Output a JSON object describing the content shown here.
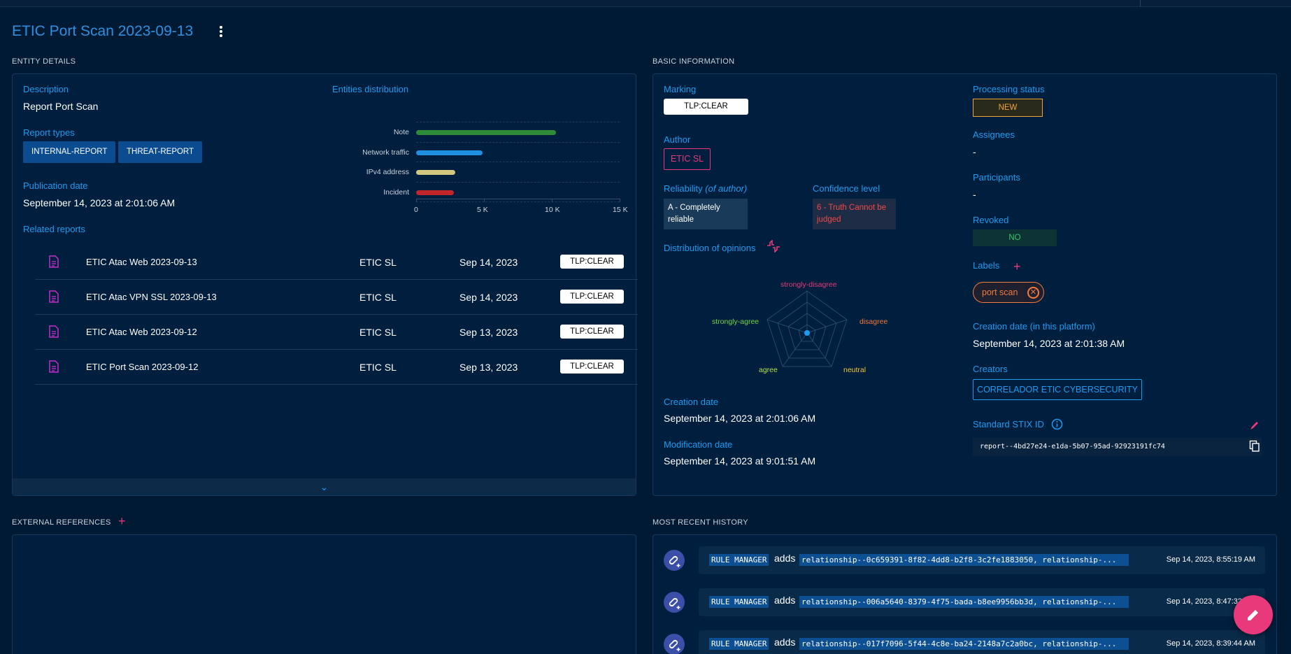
{
  "page": {
    "title": "ETIC Port Scan 2023-09-13"
  },
  "entity_details": {
    "section_title": "ENTITY DETAILS",
    "description_label": "Description",
    "description_value": "Report Port Scan",
    "report_types_label": "Report types",
    "report_types": [
      "INTERNAL-REPORT",
      "THREAT-REPORT"
    ],
    "publication_date_label": "Publication date",
    "publication_date_value": "September 14, 2023 at 2:01:06 AM",
    "related_reports_label": "Related reports",
    "related_reports": [
      {
        "name": "ETIC Atac Web 2023-09-13",
        "author": "ETIC SL",
        "date": "Sep 14, 2023",
        "marking": "TLP:CLEAR"
      },
      {
        "name": "ETIC Atac VPN SSL 2023-09-13",
        "author": "ETIC SL",
        "date": "Sep 14, 2023",
        "marking": "TLP:CLEAR"
      },
      {
        "name": "ETIC Atac Web 2023-09-12",
        "author": "ETIC SL",
        "date": "Sep 13, 2023",
        "marking": "TLP:CLEAR"
      },
      {
        "name": "ETIC Port Scan 2023-09-12",
        "author": "ETIC SL",
        "date": "Sep 13, 2023",
        "marking": "TLP:CLEAR"
      }
    ],
    "entities_distribution_label": "Entities distribution"
  },
  "chart_data": {
    "type": "bar",
    "orientation": "horizontal",
    "categories": [
      "Note",
      "Network traffic",
      "IPv4 address",
      "Incident"
    ],
    "values": [
      10300,
      4900,
      2900,
      2800
    ],
    "colors": [
      "#2e8b37",
      "#1f8fe0",
      "#d2c77e",
      "#c0262a"
    ],
    "xlim": [
      0,
      15000
    ],
    "x_ticks": [
      "0",
      "5 K",
      "10 K",
      "15 K"
    ],
    "grid": true
  },
  "basic_information": {
    "section_title": "BASIC INFORMATION",
    "marking_label": "Marking",
    "marking_value": "TLP:CLEAR",
    "author_label": "Author",
    "author_value": "ETIC SL",
    "reliability_label": "Reliability",
    "reliability_suffix": "(of author)",
    "reliability_value": "A - Completely reliable",
    "confidence_label": "Confidence level",
    "confidence_value": "6 - Truth Cannot be judged",
    "opinions_label": "Distribution of opinions",
    "opinions_axes": [
      "strongly-disagree",
      "disagree",
      "neutral",
      "agree",
      "strongly-agree"
    ],
    "creation_date_label": "Creation date",
    "creation_date_value": "September 14, 2023 at 2:01:06 AM",
    "modification_date_label": "Modification date",
    "modification_date_value": "September 14, 2023 at 9:01:51 AM",
    "processing_status_label": "Processing status",
    "processing_status_value": "NEW",
    "assignees_label": "Assignees",
    "assignees_value": "-",
    "participants_label": "Participants",
    "participants_value": "-",
    "revoked_label": "Revoked",
    "revoked_value": "NO",
    "labels_label": "Labels",
    "labels": [
      "port scan"
    ],
    "platform_creation_label": "Creation date (in this platform)",
    "platform_creation_value": "September 14, 2023 at 2:01:38 AM",
    "creators_label": "Creators",
    "creators_value": "CORRELADOR ETIC CYBERSECURITY",
    "stix_label": "Standard STIX ID",
    "stix_value": "report--4bd27e24-e1da-5b07-95ad-92923191fc74"
  },
  "external_references": {
    "section_title": "EXTERNAL REFERENCES"
  },
  "history": {
    "section_title": "MOST RECENT HISTORY",
    "items": [
      {
        "who": "RULE MANAGER",
        "action": "adds",
        "what": "relationship--0c659391-8f82-4dd8-b2f8-3c2fe1883050, relationship-...",
        "when": "Sep 14, 2023, 8:55:19 AM"
      },
      {
        "who": "RULE MANAGER",
        "action": "adds",
        "what": "relationship--006a5640-8379-4f75-bada-b8ee9956bb3d, relationship-...",
        "when": "Sep 14, 2023, 8:47:32 AM"
      },
      {
        "who": "RULE MANAGER",
        "action": "adds",
        "what": "relationship--017f7096-5f44-4c8e-ba24-2148a7c2a0bc, relationship-...",
        "when": "Sep 14, 2023, 8:39:44 AM"
      }
    ]
  },
  "colors": {
    "background": "#011a33",
    "panel": "#001e3d",
    "accent": "#1e9bf0",
    "pink": "#e8397a",
    "orange": "#f2a33a"
  }
}
